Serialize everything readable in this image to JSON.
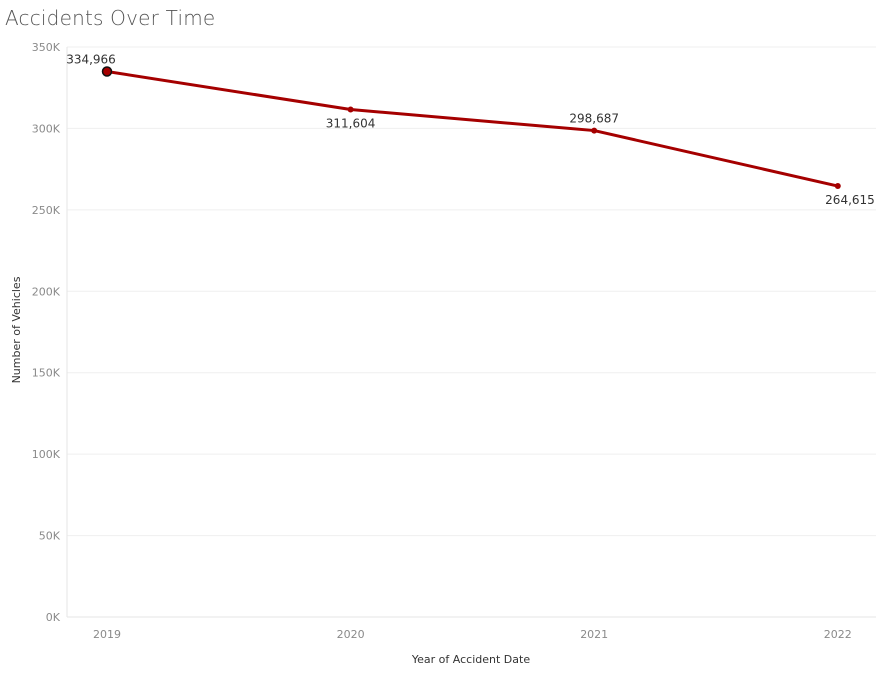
{
  "chart_data": {
    "type": "line",
    "title": "Accidents Over Time",
    "xlabel": "Year of Accident Date",
    "ylabel": "Number of Vehicles",
    "categories": [
      "2019",
      "2020",
      "2021",
      "2022"
    ],
    "series": [
      {
        "values": [
          334966,
          311604,
          298687,
          264615
        ],
        "labels": [
          "334,966",
          "311,604",
          "298,687",
          "264,615"
        ],
        "label_positions": [
          "above",
          "below",
          "above",
          "below"
        ],
        "color": "#a50000"
      }
    ],
    "ylim": [
      0,
      350000
    ],
    "yticks": [
      {
        "value": 350000,
        "label": "350K"
      },
      {
        "value": 300000,
        "label": "300K"
      },
      {
        "value": 250000,
        "label": "250K"
      },
      {
        "value": 200000,
        "label": "200K"
      },
      {
        "value": 150000,
        "label": "150K"
      },
      {
        "value": 100000,
        "label": "100K"
      },
      {
        "value": 50000,
        "label": "50K"
      },
      {
        "value": 0,
        "label": "0K"
      }
    ],
    "grid": true,
    "highlighted_index": 0
  }
}
